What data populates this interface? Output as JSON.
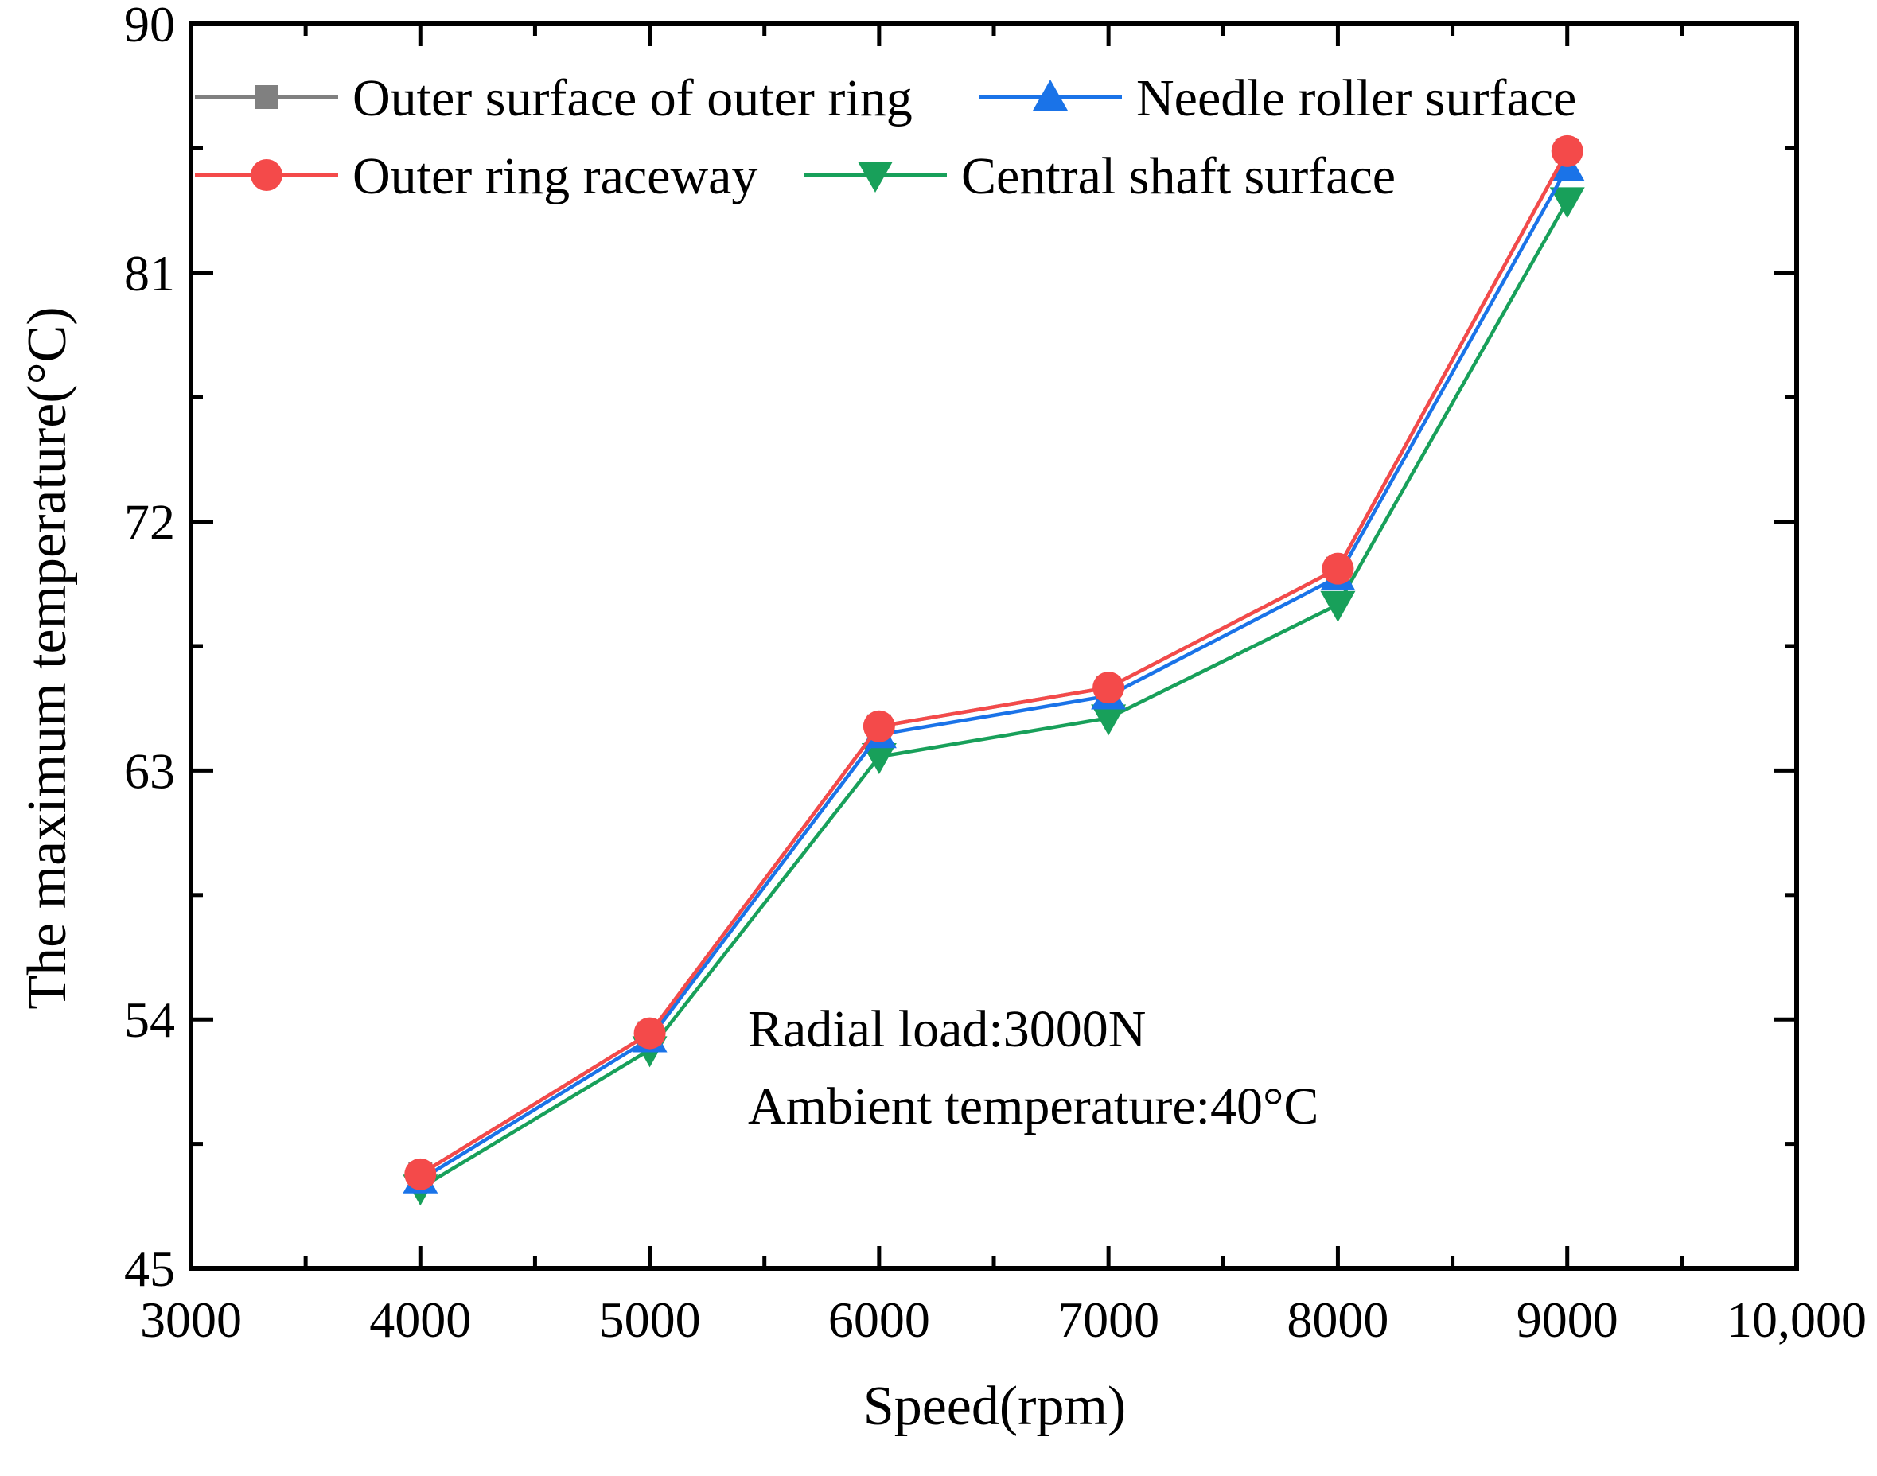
{
  "chart_data": {
    "type": "line",
    "title": "",
    "xlabel": "Speed(rpm)",
    "ylabel": "The maximum temperature(°C)",
    "xlim": [
      3000,
      10000
    ],
    "ylim": [
      45,
      90
    ],
    "x_ticks": [
      3000,
      4000,
      5000,
      6000,
      7000,
      8000,
      9000,
      10000
    ],
    "x_tick_labels": [
      "3000",
      "4000",
      "5000",
      "6000",
      "7000",
      "8000",
      "9000",
      "10,000"
    ],
    "y_ticks": [
      45,
      54,
      63,
      72,
      81,
      90
    ],
    "y_tick_labels": [
      "45",
      "54",
      "63",
      "72",
      "81",
      "90"
    ],
    "x": [
      4000,
      5000,
      6000,
      7000,
      8000,
      9000
    ],
    "series": [
      {
        "name": "Outer surface of outer ring",
        "color": "#808080",
        "marker": "square",
        "values": [
          48.4,
          53.5,
          64.6,
          66.0,
          70.3,
          85.4
        ]
      },
      {
        "name": "Outer ring raceway",
        "color": "#f44a4a",
        "marker": "circle",
        "values": [
          48.4,
          53.5,
          64.6,
          66.0,
          70.3,
          85.4
        ]
      },
      {
        "name": "Needle roller surface",
        "color": "#1a73e8",
        "marker": "triangle-up",
        "values": [
          48.2,
          53.3,
          64.3,
          65.7,
          70.0,
          84.8
        ]
      },
      {
        "name": "Central shaft surface",
        "color": "#18a05a",
        "marker": "triangle-down",
        "values": [
          47.9,
          52.9,
          63.5,
          64.9,
          69.0,
          83.6
        ]
      }
    ],
    "legend_position": "top-left",
    "annotations": [
      "Radial load:3000N",
      "Ambient temperature:40°C"
    ],
    "grid": false
  }
}
